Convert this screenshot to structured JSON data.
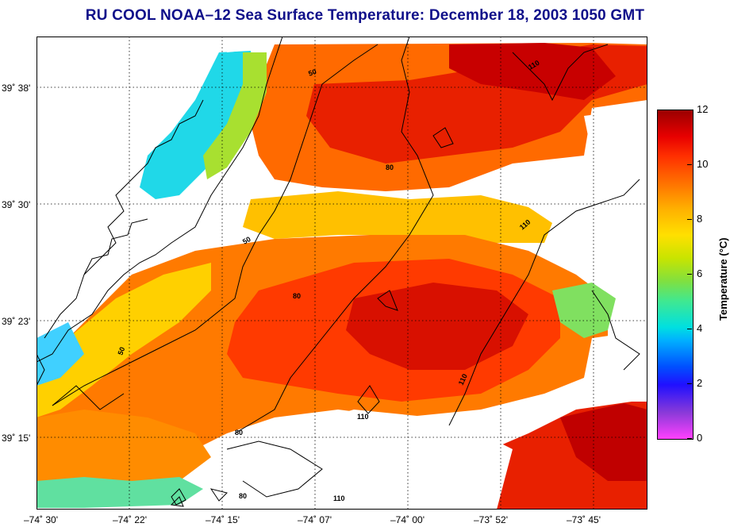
{
  "title": "RU COOL  NOAA–12  Sea Surface Temperature:  December 18, 2003 1050 GMT",
  "y_axis": {
    "labels": [
      "39˚ 38'",
      "39˚ 30'",
      "39˚ 23'",
      "39˚ 15'"
    ]
  },
  "x_axis": {
    "labels": [
      "–74˚ 30'",
      "–74˚ 22'",
      "–74˚ 15'",
      "–74˚ 07'",
      "–74˚ 00'",
      "–73˚ 52'",
      "–73˚ 45'"
    ]
  },
  "colorbar": {
    "label": "Temperature (°C)",
    "ticks": [
      "12",
      "10",
      "8",
      "6",
      "4",
      "2",
      "0"
    ],
    "min": 0,
    "max": 12
  },
  "contour_labels": [
    "50",
    "50",
    "50",
    "80",
    "80",
    "80",
    "80",
    "110",
    "110",
    "110",
    "110",
    "110"
  ],
  "colors": {
    "title": "#10108a",
    "warm": "#e82000",
    "mid": "#ff7a00",
    "cool": "#ffd000",
    "cold": "#00d8f0"
  },
  "map": {
    "grid": true,
    "contours": [
      50,
      80,
      110
    ],
    "cloud_masked_areas": "white"
  }
}
